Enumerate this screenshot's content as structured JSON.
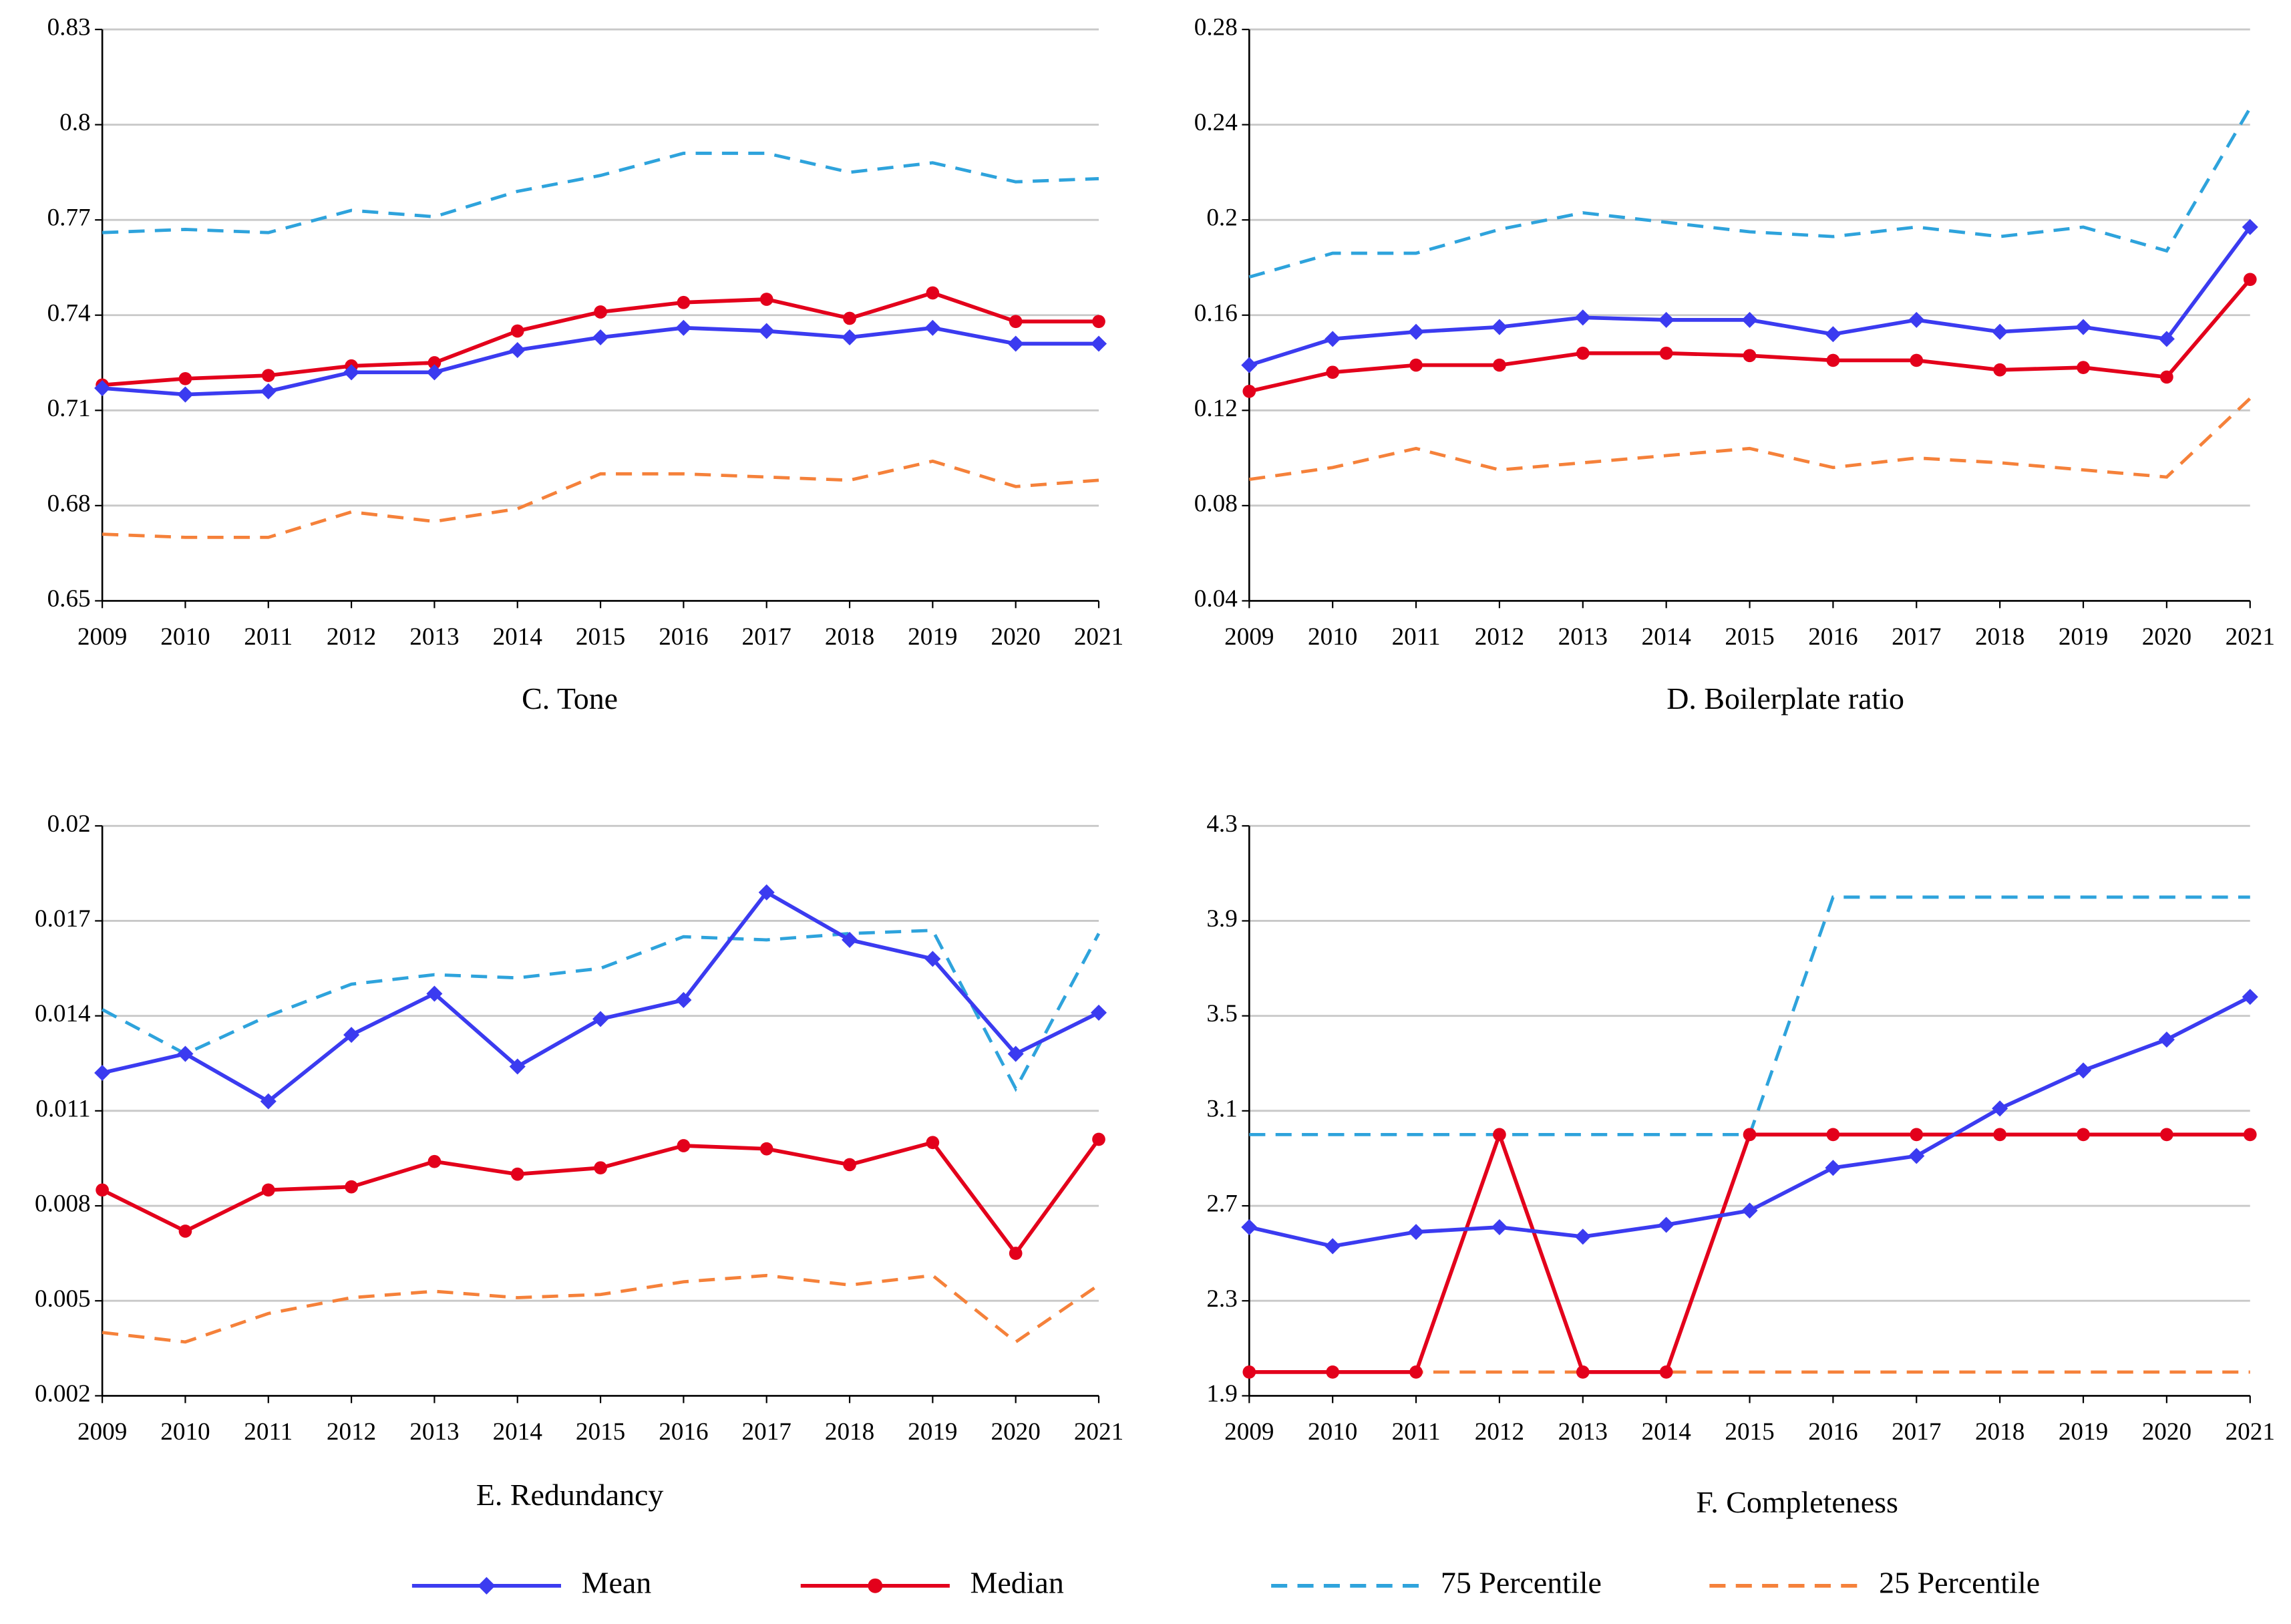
{
  "chart_data": [
    {
      "type": "line",
      "title": "C. Tone",
      "categories": [
        "2009",
        "2010",
        "2011",
        "2012",
        "2013",
        "2014",
        "2015",
        "2016",
        "2017",
        "2018",
        "2019",
        "2020",
        "2021"
      ],
      "ylim": [
        0.65,
        0.83
      ],
      "yticks": [
        0.65,
        0.68,
        0.71,
        0.74,
        0.77,
        0.8,
        0.83
      ],
      "grid": true,
      "series": [
        {
          "name": "Mean",
          "color": "#3b3bf0",
          "line_style": "solid",
          "marker": "diamond",
          "values": [
            0.717,
            0.715,
            0.716,
            0.722,
            0.722,
            0.729,
            0.733,
            0.736,
            0.735,
            0.733,
            0.736,
            0.731,
            0.731
          ]
        },
        {
          "name": "Median",
          "color": "#e3001b",
          "line_style": "solid",
          "marker": "circle",
          "values": [
            0.718,
            0.72,
            0.721,
            0.724,
            0.725,
            0.735,
            0.741,
            0.744,
            0.745,
            0.739,
            0.747,
            0.738,
            0.738
          ]
        },
        {
          "name": "75 Percentile",
          "color": "#2ea3dc",
          "line_style": "dashed",
          "marker": "none",
          "values": [
            0.766,
            0.767,
            0.766,
            0.773,
            0.771,
            0.779,
            0.784,
            0.791,
            0.791,
            0.785,
            0.788,
            0.782,
            0.783
          ]
        },
        {
          "name": "25 Percentile",
          "color": "#f5813a",
          "line_style": "dashed",
          "marker": "none",
          "values": [
            0.671,
            0.67,
            0.67,
            0.678,
            0.675,
            0.679,
            0.69,
            0.69,
            0.689,
            0.688,
            0.694,
            0.686,
            0.688
          ]
        }
      ]
    },
    {
      "type": "line",
      "title": "D. Boilerplate ratio",
      "categories": [
        "2009",
        "2010",
        "2011",
        "2012",
        "2013",
        "2014",
        "2015",
        "2016",
        "2017",
        "2018",
        "2019",
        "2020",
        "2021"
      ],
      "ylim": [
        0.04,
        0.28
      ],
      "yticks": [
        0.04,
        0.08,
        0.12,
        0.16,
        0.2,
        0.24,
        0.28
      ],
      "grid": true,
      "series": [
        {
          "name": "Mean",
          "color": "#3b3bf0",
          "line_style": "solid",
          "marker": "diamond",
          "values": [
            0.139,
            0.15,
            0.153,
            0.155,
            0.159,
            0.158,
            0.158,
            0.152,
            0.158,
            0.153,
            0.155,
            0.15,
            0.197
          ]
        },
        {
          "name": "Median",
          "color": "#e3001b",
          "line_style": "solid",
          "marker": "circle",
          "values": [
            0.128,
            0.136,
            0.139,
            0.139,
            0.144,
            0.144,
            0.143,
            0.141,
            0.141,
            0.137,
            0.138,
            0.134,
            0.175
          ]
        },
        {
          "name": "75 Percentile",
          "color": "#2ea3dc",
          "line_style": "dashed",
          "marker": "none",
          "values": [
            0.176,
            0.186,
            0.186,
            0.196,
            0.203,
            0.199,
            0.195,
            0.193,
            0.197,
            0.193,
            0.197,
            0.187,
            0.247
          ]
        },
        {
          "name": "25 Percentile",
          "color": "#f5813a",
          "line_style": "dashed",
          "marker": "none",
          "values": [
            0.091,
            0.096,
            0.104,
            0.095,
            0.098,
            0.101,
            0.104,
            0.096,
            0.1,
            0.098,
            0.095,
            0.092,
            0.125
          ]
        }
      ]
    },
    {
      "type": "line",
      "title": "E. Redundancy",
      "categories": [
        "2009",
        "2010",
        "2011",
        "2012",
        "2013",
        "2014",
        "2015",
        "2016",
        "2017",
        "2018",
        "2019",
        "2020",
        "2021"
      ],
      "ylim": [
        0.002,
        0.02
      ],
      "yticks": [
        0.002,
        0.005,
        0.008,
        0.011,
        0.014,
        0.017,
        0.02
      ],
      "grid": true,
      "series": [
        {
          "name": "Mean",
          "color": "#3b3bf0",
          "line_style": "solid",
          "marker": "diamond",
          "values": [
            0.0122,
            0.0128,
            0.0113,
            0.0134,
            0.0147,
            0.0124,
            0.0139,
            0.0145,
            0.0179,
            0.0164,
            0.0158,
            0.0128,
            0.0141
          ]
        },
        {
          "name": "Median",
          "color": "#e3001b",
          "line_style": "solid",
          "marker": "circle",
          "values": [
            0.0085,
            0.0072,
            0.0085,
            0.0086,
            0.0094,
            0.009,
            0.0092,
            0.0099,
            0.0098,
            0.0093,
            0.01,
            0.0065,
            0.0101
          ]
        },
        {
          "name": "75 Percentile",
          "color": "#2ea3dc",
          "line_style": "dashed",
          "marker": "none",
          "values": [
            0.0142,
            0.0128,
            0.014,
            0.015,
            0.0153,
            0.0152,
            0.0155,
            0.0165,
            0.0164,
            0.0166,
            0.0167,
            0.0117,
            0.0166
          ]
        },
        {
          "name": "25 Percentile",
          "color": "#f5813a",
          "line_style": "dashed",
          "marker": "none",
          "values": [
            0.004,
            0.0037,
            0.0046,
            0.0051,
            0.0053,
            0.0051,
            0.0052,
            0.0056,
            0.0058,
            0.0055,
            0.0058,
            0.0037,
            0.0055
          ]
        }
      ]
    },
    {
      "type": "line",
      "title": "F. Completeness",
      "categories": [
        "2009",
        "2010",
        "2011",
        "2012",
        "2013",
        "2014",
        "2015",
        "2016",
        "2017",
        "2018",
        "2019",
        "2020",
        "2021"
      ],
      "ylim": [
        1.9,
        4.3
      ],
      "yticks": [
        1.9,
        2.3,
        2.7,
        3.1,
        3.5,
        3.9,
        4.3
      ],
      "grid": true,
      "series": [
        {
          "name": "Mean",
          "color": "#3b3bf0",
          "line_style": "solid",
          "marker": "diamond",
          "values": [
            2.61,
            2.53,
            2.59,
            2.61,
            2.57,
            2.62,
            2.68,
            2.86,
            2.91,
            3.11,
            3.27,
            3.4,
            3.58
          ]
        },
        {
          "name": "Median",
          "color": "#e3001b",
          "line_style": "solid",
          "marker": "circle",
          "values": [
            2,
            2,
            2,
            3,
            2,
            2,
            3,
            3,
            3,
            3,
            3,
            3,
            3
          ]
        },
        {
          "name": "75 Percentile",
          "color": "#2ea3dc",
          "line_style": "dashed",
          "marker": "none",
          "values": [
            3,
            3,
            3,
            3,
            3,
            3,
            3,
            4,
            4,
            4,
            4,
            4,
            4
          ]
        },
        {
          "name": "25 Percentile",
          "color": "#f5813a",
          "line_style": "dashed",
          "marker": "none",
          "values": [
            2,
            2,
            2,
            2,
            2,
            2,
            2,
            2,
            2,
            2,
            2,
            2,
            2
          ]
        }
      ]
    }
  ]
}
